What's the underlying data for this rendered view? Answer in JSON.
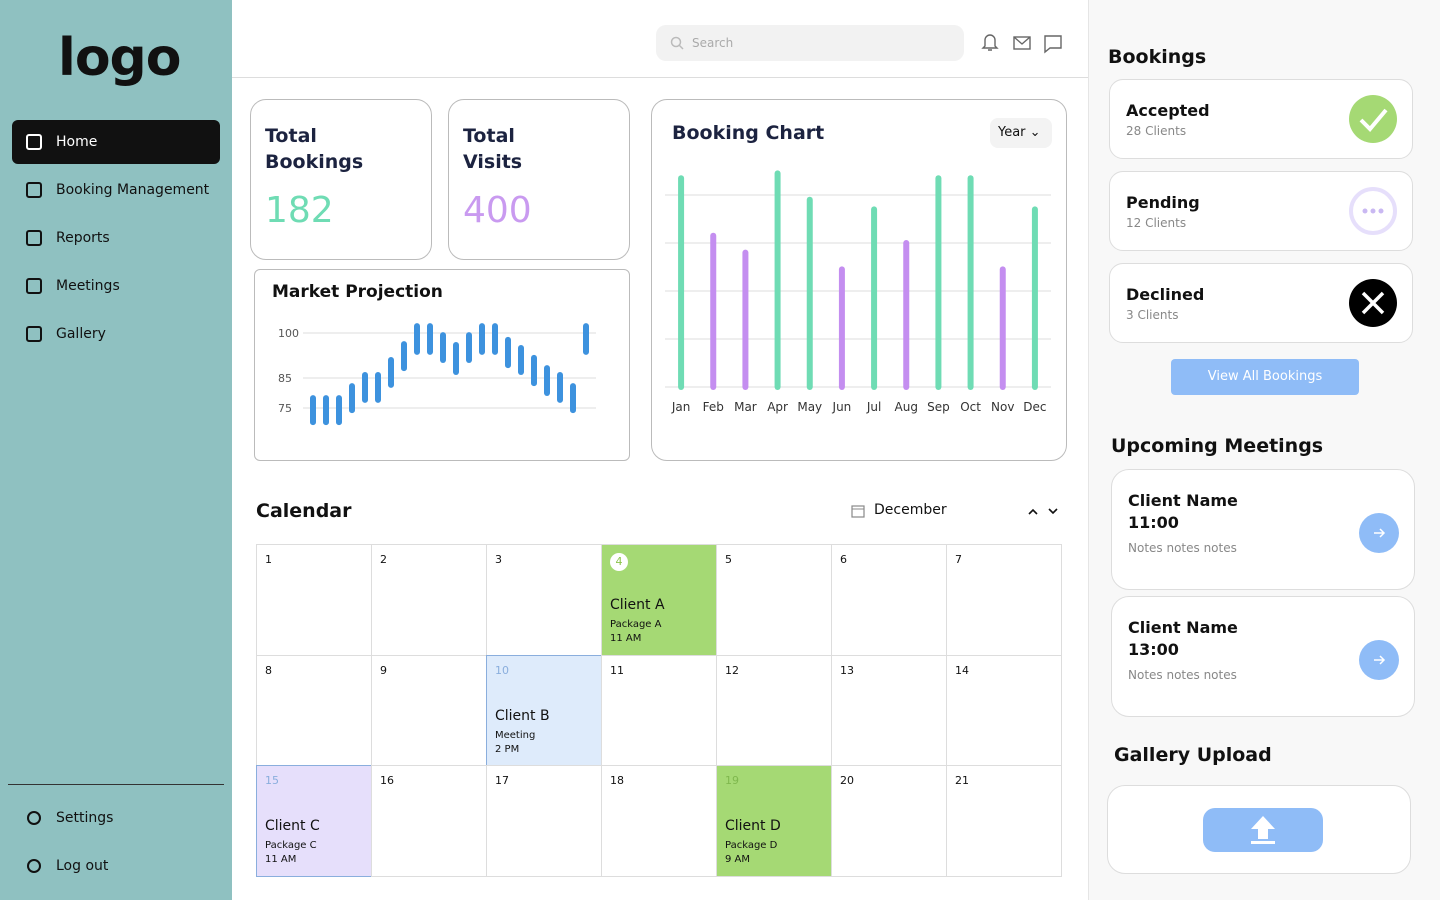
{
  "sidebar": {
    "logo": "logo",
    "nav": [
      "Home",
      "Booking Management",
      "Reports",
      "Meetings",
      "Gallery"
    ],
    "footer": [
      "Settings",
      "Log out"
    ]
  },
  "header": {
    "search_placeholder": "Search"
  },
  "stats": [
    {
      "label": "Total Bookings",
      "value": 182,
      "color": "#6fdcb4"
    },
    {
      "label": "Total Visits",
      "value": 400,
      "color": "#c99af0"
    }
  ],
  "chart_data": [
    {
      "type": "bar",
      "title": "Booking Chart",
      "period": "Year",
      "categories": [
        "Jan",
        "Feb",
        "Mar",
        "Apr",
        "May",
        "Jun",
        "Jul",
        "Aug",
        "Sep",
        "Oct",
        "Nov",
        "Dec"
      ],
      "values": [
        43.5,
        31.5,
        28,
        44.5,
        39,
        24.5,
        37,
        30,
        43.5,
        43.5,
        24.5,
        37
      ],
      "colors": [
        "#6fdcb4",
        "#c48ef0",
        "#c48ef0",
        "#6fdcb4",
        "#6fdcb4",
        "#c48ef0",
        "#6fdcb4",
        "#c48ef0",
        "#6fdcb4",
        "#6fdcb4",
        "#c48ef0",
        "#6fdcb4"
      ],
      "ylim": [
        0,
        45
      ],
      "yticks": [
        0,
        10,
        20,
        30,
        40
      ],
      "grid": true
    },
    {
      "type": "range",
      "title": "Market Projection",
      "color": "#3d92de",
      "low": [
        70.3,
        70.3,
        70.3,
        74.3,
        77.7,
        77.7,
        82.7,
        88.3,
        93.7,
        93.7,
        91,
        87,
        91,
        93.7,
        93.7,
        89.3,
        87,
        83.3,
        80,
        77.7,
        74.3,
        93.7
      ],
      "high": [
        78.3,
        78.3,
        78.3,
        82.3,
        86,
        86,
        91,
        96.3,
        102.3,
        102.3,
        99.3,
        96,
        99.3,
        102.3,
        102.3,
        97.7,
        95,
        91.7,
        88.3,
        86,
        82.3,
        102.3
      ],
      "ylim": [
        69,
        104
      ],
      "yticks": [
        75,
        85,
        100
      ],
      "grid": true
    }
  ],
  "calendar": {
    "title": "Calendar",
    "month": "December",
    "days": [
      {
        "day": 1
      },
      {
        "day": 2
      },
      {
        "day": 3
      },
      {
        "day": 4,
        "client": "Client A",
        "detail": "Package A",
        "time": "11 AM",
        "color": "#a5d974"
      },
      {
        "day": 5
      },
      {
        "day": 6
      },
      {
        "day": 7
      },
      {
        "day": 8
      },
      {
        "day": 9
      },
      {
        "day": 10,
        "client": "Client B",
        "detail": "Meeting",
        "time": "2 PM",
        "color": "#deebfb"
      },
      {
        "day": 11
      },
      {
        "day": 12
      },
      {
        "day": 13
      },
      {
        "day": 14
      },
      {
        "day": 15,
        "client": "Client C",
        "detail": "Package C",
        "time": "11 AM",
        "color": "#e6dffb"
      },
      {
        "day": 16
      },
      {
        "day": 17
      },
      {
        "day": 18
      },
      {
        "day": 19,
        "client": "Client D",
        "detail": "Package D",
        "time": "9 AM",
        "color": "#a5d974"
      },
      {
        "day": 20
      },
      {
        "day": 21
      }
    ]
  },
  "bookings": {
    "title": "Bookings",
    "items": [
      {
        "status": "Accepted",
        "count": "28 Clients"
      },
      {
        "status": "Pending",
        "count": "12 Clients"
      },
      {
        "status": "Declined",
        "count": "3 Clients"
      }
    ],
    "button": "View All Bookings"
  },
  "meetings": {
    "title": "Upcoming Meetings",
    "items": [
      {
        "name": "Client Name",
        "time": "11:00",
        "notes": "Notes notes notes"
      },
      {
        "name": "Client Name",
        "time": "13:00",
        "notes": "Notes notes notes"
      }
    ]
  },
  "gallery": {
    "title": "Gallery Upload"
  }
}
